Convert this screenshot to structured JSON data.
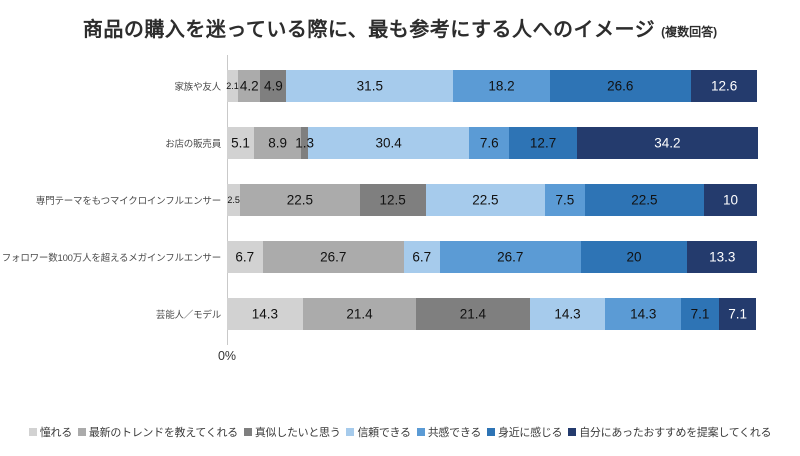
{
  "title": "商品の購入を迷っている際に、最も参考にする人へのイメージ",
  "title_note": "(複数回答)",
  "axis": {
    "zero_label": "0%"
  },
  "chart_data": {
    "type": "bar",
    "variant": "horizontal-stacked",
    "title": "商品の購入を迷っている際に、最も参考にする人へのイメージ (複数回答)",
    "unit": "%",
    "x_axis_ticks": [
      "0%"
    ],
    "xlim": [
      0,
      100
    ],
    "grid": false,
    "legend_position": "bottom",
    "categories": [
      "家族や友人",
      "お店の販売員",
      "専門テーマをもつマイクロインフルエンサー",
      "フォロワー数100万人を超えるメガインフルエンサー",
      "芸能人／モデル"
    ],
    "series": [
      {
        "name": "憧れる",
        "color": "#d2d2d2",
        "values": [
          2.1,
          5.1,
          2.5,
          6.7,
          14.3
        ]
      },
      {
        "name": "最新のトレンドを教えてくれる",
        "color": "#ababab",
        "values": [
          4.2,
          8.9,
          22.5,
          26.7,
          21.4
        ]
      },
      {
        "name": "真似したいと思う",
        "color": "#7f7f7f",
        "values": [
          4.9,
          1.3,
          12.5,
          0,
          21.4
        ]
      },
      {
        "name": "信頼できる",
        "color": "#a6cbec",
        "values": [
          31.5,
          30.4,
          22.5,
          6.7,
          14.3
        ]
      },
      {
        "name": "共感できる",
        "color": "#5b9bd5",
        "values": [
          18.2,
          7.6,
          7.5,
          26.7,
          14.3
        ]
      },
      {
        "name": "身近に感じる",
        "color": "#2e74b5",
        "values": [
          26.6,
          12.7,
          22.5,
          20,
          7.1
        ]
      },
      {
        "name": "自分にあったおすすめを提案してくれる",
        "color": "#243b6d",
        "values": [
          12.6,
          34.2,
          10,
          13.3,
          7.1
        ]
      }
    ],
    "value_label_color_default": "#111111",
    "value_label_color_on_last_series": "#ffffff"
  }
}
